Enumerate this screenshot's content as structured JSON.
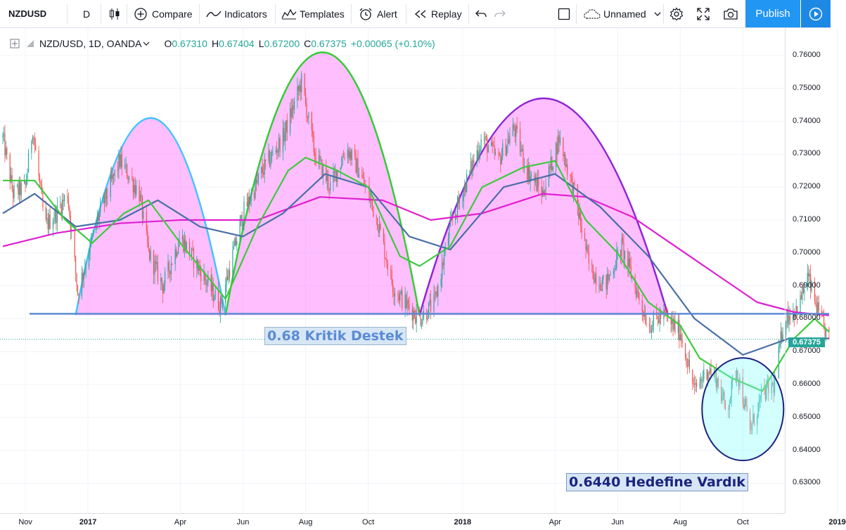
{
  "toolbar": {
    "symbol": "NZDUSD",
    "interval": "D",
    "compare": "Compare",
    "indicators": "Indicators",
    "templates": "Templates",
    "alert": "Alert",
    "replay": "Replay",
    "layout_name": "Unnamed",
    "publish": "Publish"
  },
  "legend": {
    "symbol": "NZD/USD, 1D, OANDA",
    "open_label": "O",
    "open": "0.67310",
    "high_label": "H",
    "high": "0.67404",
    "low_label": "L",
    "low": "0.67200",
    "close_label": "C",
    "close": "0.67375",
    "change": "+0.00065 (+0.10%)"
  },
  "annotations": {
    "support": "0.68 Kritik Destek",
    "target": "0.6440 Hedefine Vardık"
  },
  "price_axis": {
    "ticks": [
      "0.76000",
      "0.75000",
      "0.74000",
      "0.73000",
      "0.72000",
      "0.71000",
      "0.70000",
      "0.69000",
      "0.68000",
      "0.67000",
      "0.66000",
      "0.65000",
      "0.64000",
      "0.63000"
    ],
    "last_price": "0.67375"
  },
  "time_axis": {
    "ticks": [
      "Nov",
      "2017",
      "Apr",
      "Jun",
      "Aug",
      "Oct",
      "2018",
      "Apr",
      "Jun",
      "Aug",
      "Oct",
      "2019"
    ]
  },
  "colors": {
    "up": "#26a69a",
    "down": "#ef5350",
    "ma_fast": "#3ec93e",
    "ma_mid": "#4a6fa5",
    "ma_slow": "#e020d0",
    "support_line": "#5b8bd6",
    "arc1": "#40c4ff",
    "arc2": "#33cc33",
    "arc3": "#8e24d8",
    "accent": "#2196f3"
  },
  "chart_data": {
    "type": "candlestick",
    "symbol": "NZD/USD",
    "interval": "1D",
    "ylim": [
      0.625,
      0.766
    ],
    "support_level": 0.6815,
    "target_level": 0.644,
    "price_path": [
      {
        "t": "2016-10-10",
        "v": 0.735
      },
      {
        "t": "2016-10-20",
        "v": 0.718
      },
      {
        "t": "2016-11-01",
        "v": 0.72
      },
      {
        "t": "2016-11-08",
        "v": 0.738
      },
      {
        "t": "2016-11-20",
        "v": 0.708
      },
      {
        "t": "2016-12-01",
        "v": 0.712
      },
      {
        "t": "2016-12-12",
        "v": 0.718
      },
      {
        "t": "2016-12-22",
        "v": 0.688
      },
      {
        "t": "2017-01-10",
        "v": 0.71
      },
      {
        "t": "2017-02-01",
        "v": 0.728
      },
      {
        "t": "2017-02-20",
        "v": 0.718
      },
      {
        "t": "2017-03-01",
        "v": 0.7
      },
      {
        "t": "2017-03-15",
        "v": 0.69
      },
      {
        "t": "2017-04-01",
        "v": 0.705
      },
      {
        "t": "2017-04-25",
        "v": 0.692
      },
      {
        "t": "2017-05-10",
        "v": 0.684
      },
      {
        "t": "2017-06-01",
        "v": 0.712
      },
      {
        "t": "2017-06-20",
        "v": 0.725
      },
      {
        "t": "2017-07-10",
        "v": 0.735
      },
      {
        "t": "2017-07-28",
        "v": 0.752
      },
      {
        "t": "2017-08-10",
        "v": 0.73
      },
      {
        "t": "2017-08-25",
        "v": 0.72
      },
      {
        "t": "2017-09-10",
        "v": 0.732
      },
      {
        "t": "2017-09-22",
        "v": 0.725
      },
      {
        "t": "2017-10-10",
        "v": 0.71
      },
      {
        "t": "2017-10-25",
        "v": 0.69
      },
      {
        "t": "2017-11-05",
        "v": 0.685
      },
      {
        "t": "2017-11-20",
        "v": 0.68
      },
      {
        "t": "2017-12-05",
        "v": 0.685
      },
      {
        "t": "2017-12-20",
        "v": 0.708
      },
      {
        "t": "2018-01-05",
        "v": 0.722
      },
      {
        "t": "2018-01-20",
        "v": 0.735
      },
      {
        "t": "2018-02-05",
        "v": 0.728
      },
      {
        "t": "2018-02-20",
        "v": 0.738
      },
      {
        "t": "2018-03-05",
        "v": 0.725
      },
      {
        "t": "2018-03-20",
        "v": 0.718
      },
      {
        "t": "2018-04-05",
        "v": 0.735
      },
      {
        "t": "2018-04-20",
        "v": 0.718
      },
      {
        "t": "2018-05-05",
        "v": 0.695
      },
      {
        "t": "2018-05-20",
        "v": 0.69
      },
      {
        "t": "2018-06-05",
        "v": 0.702
      },
      {
        "t": "2018-06-20",
        "v": 0.688
      },
      {
        "t": "2018-07-01",
        "v": 0.678
      },
      {
        "t": "2018-07-15",
        "v": 0.681
      },
      {
        "t": "2018-08-01",
        "v": 0.676
      },
      {
        "t": "2018-08-15",
        "v": 0.658
      },
      {
        "t": "2018-08-28",
        "v": 0.665
      },
      {
        "t": "2018-09-05",
        "v": 0.662
      },
      {
        "t": "2018-09-15",
        "v": 0.652
      },
      {
        "t": "2018-09-25",
        "v": 0.665
      },
      {
        "t": "2018-10-08",
        "v": 0.646
      },
      {
        "t": "2018-10-20",
        "v": 0.657
      },
      {
        "t": "2018-11-01",
        "v": 0.66
      },
      {
        "t": "2018-11-10",
        "v": 0.68
      },
      {
        "t": "2018-11-25",
        "v": 0.684
      },
      {
        "t": "2018-12-03",
        "v": 0.693
      },
      {
        "t": "2018-12-15",
        "v": 0.68
      },
      {
        "t": "2018-12-24",
        "v": 0.6738
      }
    ],
    "ma_fast": [
      {
        "t": "2016-10-10",
        "v": 0.722
      },
      {
        "t": "2016-11-10",
        "v": 0.722
      },
      {
        "t": "2016-12-10",
        "v": 0.71
      },
      {
        "t": "2017-01-05",
        "v": 0.703
      },
      {
        "t": "2017-02-05",
        "v": 0.712
      },
      {
        "t": "2017-03-01",
        "v": 0.716
      },
      {
        "t": "2017-04-01",
        "v": 0.703
      },
      {
        "t": "2017-05-15",
        "v": 0.686
      },
      {
        "t": "2017-06-15",
        "v": 0.708
      },
      {
        "t": "2017-07-15",
        "v": 0.725
      },
      {
        "t": "2017-08-01",
        "v": 0.729
      },
      {
        "t": "2017-09-01",
        "v": 0.725
      },
      {
        "t": "2017-10-01",
        "v": 0.72
      },
      {
        "t": "2017-11-01",
        "v": 0.699
      },
      {
        "t": "2017-11-20",
        "v": 0.696
      },
      {
        "t": "2017-12-20",
        "v": 0.702
      },
      {
        "t": "2018-01-20",
        "v": 0.72
      },
      {
        "t": "2018-03-01",
        "v": 0.726
      },
      {
        "t": "2018-04-01",
        "v": 0.728
      },
      {
        "t": "2018-05-01",
        "v": 0.71
      },
      {
        "t": "2018-06-01",
        "v": 0.7
      },
      {
        "t": "2018-07-01",
        "v": 0.685
      },
      {
        "t": "2018-08-01",
        "v": 0.678
      },
      {
        "t": "2018-08-20",
        "v": 0.668
      },
      {
        "t": "2018-09-20",
        "v": 0.662
      },
      {
        "t": "2018-10-20",
        "v": 0.658
      },
      {
        "t": "2018-11-20",
        "v": 0.674
      },
      {
        "t": "2018-12-10",
        "v": 0.68
      },
      {
        "t": "2018-12-24",
        "v": 0.676
      }
    ],
    "ma_mid": [
      {
        "t": "2016-10-10",
        "v": 0.712
      },
      {
        "t": "2016-11-10",
        "v": 0.718
      },
      {
        "t": "2016-12-20",
        "v": 0.708
      },
      {
        "t": "2017-02-01",
        "v": 0.71
      },
      {
        "t": "2017-03-10",
        "v": 0.716
      },
      {
        "t": "2017-04-20",
        "v": 0.708
      },
      {
        "t": "2017-06-01",
        "v": 0.705
      },
      {
        "t": "2017-07-10",
        "v": 0.712
      },
      {
        "t": "2017-08-20",
        "v": 0.724
      },
      {
        "t": "2017-10-01",
        "v": 0.72
      },
      {
        "t": "2017-11-10",
        "v": 0.705
      },
      {
        "t": "2017-12-20",
        "v": 0.701
      },
      {
        "t": "2018-02-10",
        "v": 0.72
      },
      {
        "t": "2018-04-01",
        "v": 0.724
      },
      {
        "t": "2018-05-15",
        "v": 0.714
      },
      {
        "t": "2018-07-01",
        "v": 0.699
      },
      {
        "t": "2018-08-15",
        "v": 0.68
      },
      {
        "t": "2018-10-01",
        "v": 0.669
      },
      {
        "t": "2018-11-15",
        "v": 0.674
      },
      {
        "t": "2018-12-24",
        "v": 0.674
      }
    ],
    "ma_slow": [
      {
        "t": "2016-10-10",
        "v": 0.702
      },
      {
        "t": "2016-12-01",
        "v": 0.706
      },
      {
        "t": "2017-02-01",
        "v": 0.709
      },
      {
        "t": "2017-04-01",
        "v": 0.71
      },
      {
        "t": "2017-06-15",
        "v": 0.71
      },
      {
        "t": "2017-08-15",
        "v": 0.717
      },
      {
        "t": "2017-10-15",
        "v": 0.716
      },
      {
        "t": "2017-12-01",
        "v": 0.71
      },
      {
        "t": "2018-01-20",
        "v": 0.712
      },
      {
        "t": "2018-03-20",
        "v": 0.718
      },
      {
        "t": "2018-05-01",
        "v": 0.717
      },
      {
        "t": "2018-06-15",
        "v": 0.711
      },
      {
        "t": "2018-08-15",
        "v": 0.698
      },
      {
        "t": "2018-10-15",
        "v": 0.685
      },
      {
        "t": "2018-11-20",
        "v": 0.682
      },
      {
        "t": "2018-12-24",
        "v": 0.681
      }
    ],
    "arcs": [
      {
        "start": "2016-12-20",
        "end": "2017-05-15",
        "peak": 0.741
      },
      {
        "start": "2017-05-15",
        "end": "2017-11-20",
        "peak": 0.761
      },
      {
        "start": "2017-11-20",
        "end": "2018-07-20",
        "peak": 0.747
      }
    ],
    "target_ellipse": {
      "center": "2018-10-01",
      "value": 0.6525
    }
  }
}
